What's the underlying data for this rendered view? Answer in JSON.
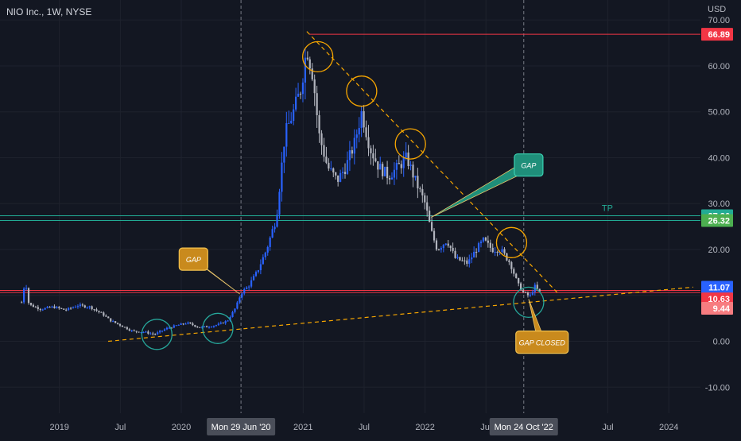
{
  "symbol_label": "NIO Inc., 1W, NYSE",
  "currency": "USD",
  "colors": {
    "background": "#131722",
    "grid": "#1e222d",
    "up": "#2962ff",
    "down": "#b2b5be",
    "red_line": "#f23645",
    "green_line": "#22ab94",
    "dashed": "#f7a600",
    "circle_orange": "#f7a600",
    "circle_teal": "#26a69a",
    "callout_orange": "#c98a1d",
    "callout_teal": "#1f8f7a"
  },
  "chart_data": {
    "type": "candlestick",
    "title": "NIO Inc., 1W, NYSE",
    "ylabel": "USD",
    "ylim": [
      -15,
      72
    ],
    "grid": true,
    "y_ticks": [
      "70.00",
      "60.00",
      "50.00",
      "40.00",
      "30.00",
      "20.00",
      "10.00",
      "0.00",
      "-10.00"
    ],
    "x_ticks": [
      {
        "t": 2019.0,
        "label": "2019"
      },
      {
        "t": 2019.5,
        "label": "Jul"
      },
      {
        "t": 2020.0,
        "label": "2020"
      },
      {
        "t": 2021.0,
        "label": "2021"
      },
      {
        "t": 2021.5,
        "label": "Jul"
      },
      {
        "t": 2022.0,
        "label": "2022"
      },
      {
        "t": 2022.5,
        "label": "Jul"
      },
      {
        "t": 2023.5,
        "label": "Jul"
      },
      {
        "t": 2024.0,
        "label": "2024"
      }
    ],
    "crosshair_dates": [
      {
        "t": 2020.49,
        "label": "Mon 29 Jun '20"
      },
      {
        "t": 2022.81,
        "label": "Mon 24 Oct '22"
      }
    ],
    "price_path": [
      [
        2018.69,
        8.5
      ],
      [
        2018.72,
        13.5
      ],
      [
        2018.75,
        8.0
      ],
      [
        2018.85,
        7.0
      ],
      [
        2018.95,
        7.5
      ],
      [
        2019.05,
        6.8
      ],
      [
        2019.15,
        7.8
      ],
      [
        2019.25,
        7.5
      ],
      [
        2019.35,
        6.0
      ],
      [
        2019.42,
        4.5
      ],
      [
        2019.5,
        3.5
      ],
      [
        2019.6,
        2.2
      ],
      [
        2019.7,
        2.0
      ],
      [
        2019.78,
        1.5
      ],
      [
        2019.88,
        2.8
      ],
      [
        2019.97,
        3.5
      ],
      [
        2020.05,
        4.0
      ],
      [
        2020.15,
        3.0
      ],
      [
        2020.22,
        3.2
      ],
      [
        2020.3,
        3.6
      ],
      [
        2020.38,
        4.5
      ],
      [
        2020.45,
        7.5
      ],
      [
        2020.49,
        10.5
      ],
      [
        2020.55,
        12.0
      ],
      [
        2020.62,
        15.0
      ],
      [
        2020.7,
        20.0
      ],
      [
        2020.78,
        27.0
      ],
      [
        2020.85,
        45.0
      ],
      [
        2020.92,
        50.0
      ],
      [
        2020.98,
        55.0
      ],
      [
        2021.03,
        64.0
      ],
      [
        2021.08,
        58.0
      ],
      [
        2021.13,
        45.0
      ],
      [
        2021.2,
        38.0
      ],
      [
        2021.28,
        35.0
      ],
      [
        2021.35,
        38.0
      ],
      [
        2021.42,
        43.0
      ],
      [
        2021.48,
        50.0
      ],
      [
        2021.55,
        42.0
      ],
      [
        2021.62,
        38.0
      ],
      [
        2021.7,
        36.0
      ],
      [
        2021.78,
        38.0
      ],
      [
        2021.85,
        40.0
      ],
      [
        2021.92,
        35.0
      ],
      [
        2022.0,
        30.0
      ],
      [
        2022.05,
        24.0
      ],
      [
        2022.1,
        20.0
      ],
      [
        2022.18,
        22.0
      ],
      [
        2022.25,
        18.0
      ],
      [
        2022.35,
        17.0
      ],
      [
        2022.42,
        20.0
      ],
      [
        2022.48,
        22.0
      ],
      [
        2022.55,
        20.0
      ],
      [
        2022.62,
        20.0
      ],
      [
        2022.7,
        17.0
      ],
      [
        2022.76,
        12.5
      ],
      [
        2022.81,
        10.5
      ],
      [
        2022.86,
        9.8
      ],
      [
        2022.9,
        12.0
      ],
      [
        2022.95,
        10.3
      ]
    ],
    "horizontal_lines": [
      {
        "value": 66.89,
        "label": "66.89",
        "color": "#f23645",
        "badge": "#f23645"
      },
      {
        "value": 27.36,
        "label": "27.36",
        "color": "#22ab94",
        "badge": "#22ab94"
      },
      {
        "value": 26.32,
        "label": "26.32",
        "color": "#22ab94",
        "badge": "#4caf50"
      },
      {
        "value": 11.07,
        "label": "11.07",
        "color": "#f23645",
        "badge": "#2962ff"
      },
      {
        "value": 10.63,
        "label": "10.63",
        "color": "#f23645",
        "badge": "#f23645"
      }
    ],
    "extra_price_badges": [
      {
        "value": 9.44,
        "label": "9.44",
        "badge": "#f77c80"
      }
    ],
    "tp_label": {
      "text": "TP",
      "t": 2023.45,
      "value": 28.4
    },
    "trendlines": [
      {
        "from": [
          2021.03,
          67.5
        ],
        "to": [
          2023.1,
          10.2
        ],
        "style": "dashed"
      },
      {
        "from": [
          2019.4,
          0.0
        ],
        "to": [
          2024.2,
          11.8
        ],
        "style": "dashed"
      }
    ],
    "circles": [
      {
        "t": 2021.12,
        "value": 62.0,
        "kind": "orange"
      },
      {
        "t": 2021.48,
        "value": 54.5,
        "kind": "orange"
      },
      {
        "t": 2021.88,
        "value": 43.0,
        "kind": "orange"
      },
      {
        "t": 2022.71,
        "value": 21.5,
        "kind": "orange"
      },
      {
        "t": 2019.8,
        "value": 1.5,
        "kind": "teal"
      },
      {
        "t": 2020.3,
        "value": 2.8,
        "kind": "teal"
      },
      {
        "t": 2022.85,
        "value": 8.5,
        "kind": "teal"
      }
    ],
    "callouts": [
      {
        "text": "GAP",
        "kind": "orange",
        "box_t": 2020.1,
        "box_v": 17.9,
        "tip_t": 2020.48,
        "tip_v": 10.3
      },
      {
        "text": "GAP",
        "kind": "teal",
        "box_t": 2022.85,
        "box_v": 38.4,
        "tip_t": 2022.05,
        "tip_v": 27.0
      },
      {
        "text": "GAP CLOSED",
        "kind": "orange",
        "box_t": 2022.96,
        "box_v": -0.2,
        "tip_t": 2022.85,
        "tip_v": 9.2
      }
    ]
  }
}
